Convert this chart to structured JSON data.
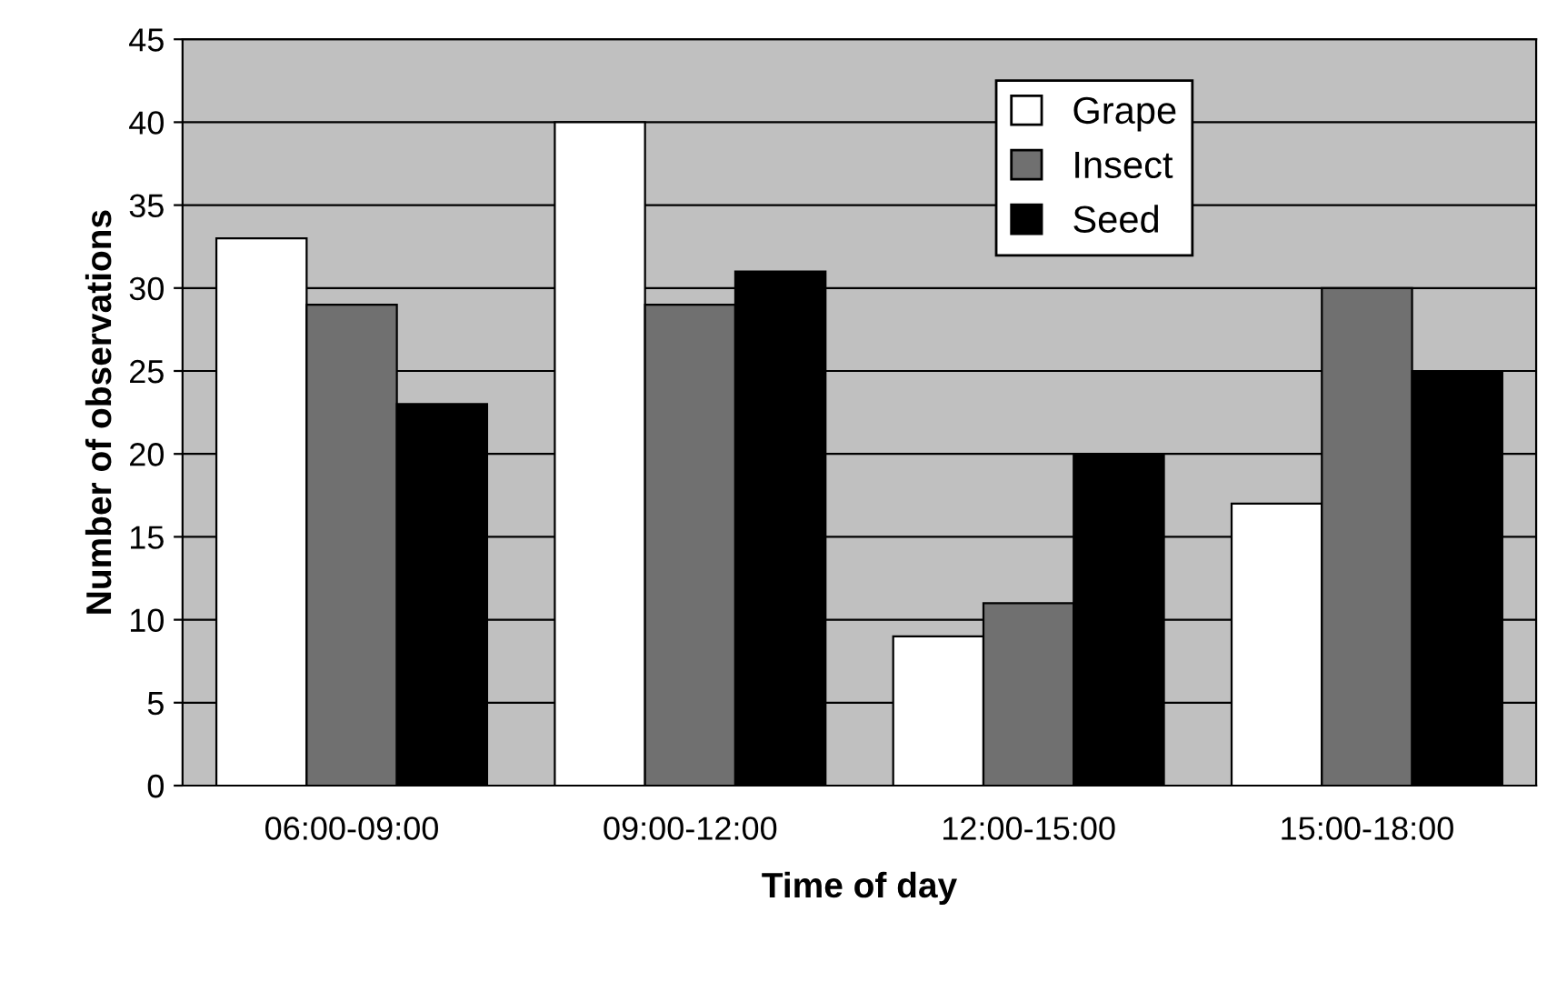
{
  "chart_data": {
    "type": "bar",
    "xlabel": "Time of day",
    "ylabel": "Number of observations",
    "categories": [
      "06:00-09:00",
      "09:00-12:00",
      "12:00-15:00",
      "15:00-18:00"
    ],
    "series": [
      {
        "name": "Grape",
        "color": "#ffffff",
        "values": [
          33,
          40,
          9,
          17
        ]
      },
      {
        "name": "Insect",
        "color": "#707070",
        "values": [
          29,
          29,
          11,
          30
        ]
      },
      {
        "name": "Seed",
        "color": "#000000",
        "values": [
          23,
          31,
          20,
          25
        ]
      }
    ],
    "ylim": [
      0,
      45
    ],
    "yticks": [
      0,
      5,
      10,
      15,
      20,
      25,
      30,
      35,
      40,
      45
    ],
    "grid": "y",
    "legend": "top right"
  }
}
